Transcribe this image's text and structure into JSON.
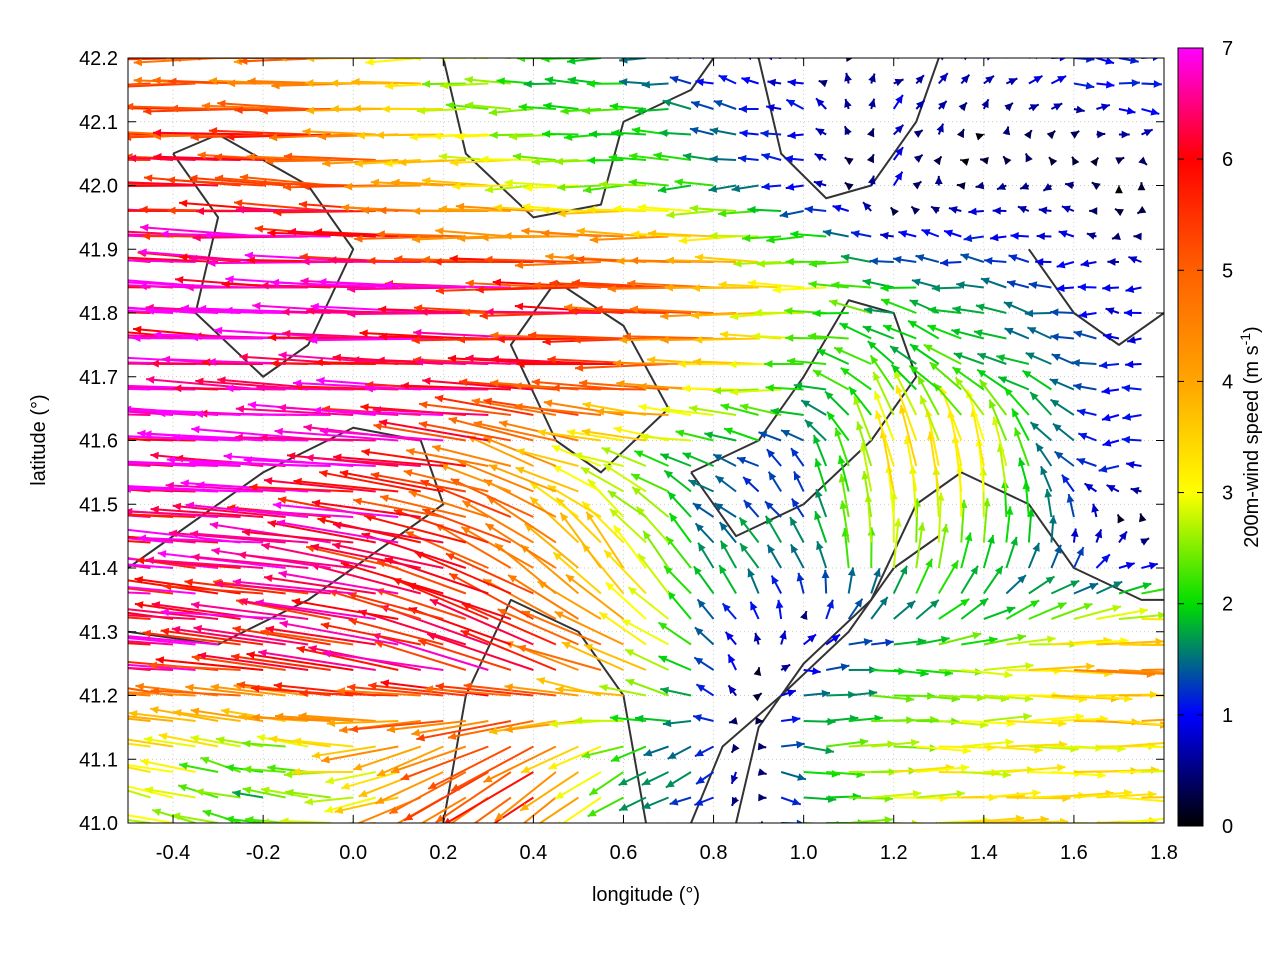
{
  "chart_data": {
    "type": "vector-field",
    "xlabel": "longitude (°)",
    "ylabel": "latitude (°)",
    "xlim": [
      -0.5,
      1.8
    ],
    "ylim": [
      41.0,
      42.2
    ],
    "xticks": [
      "-0.4",
      "-0.2",
      "0.0",
      "0.2",
      "0.4",
      "0.6",
      "0.8",
      "1.0",
      "1.2",
      "1.4",
      "1.6",
      "1.8"
    ],
    "xtick_values": [
      -0.4,
      -0.2,
      0.0,
      0.2,
      0.4,
      0.6,
      0.8,
      1.0,
      1.2,
      1.4,
      1.6,
      1.8
    ],
    "yticks": [
      "41.0",
      "41.1",
      "41.2",
      "41.3",
      "41.4",
      "41.5",
      "41.6",
      "41.7",
      "41.8",
      "41.9",
      "42.0",
      "42.1",
      "42.2"
    ],
    "ytick_values": [
      41.0,
      41.1,
      41.2,
      41.3,
      41.4,
      41.5,
      41.6,
      41.7,
      41.8,
      41.9,
      42.0,
      42.1,
      42.2
    ],
    "grid": true,
    "colorbar": {
      "label_main": "200m-wind speed (m s",
      "label_sup": "-1",
      "label_end": ")",
      "range": [
        0,
        7
      ],
      "ticks": [
        "0",
        "1",
        "2",
        "3",
        "4",
        "5",
        "6",
        "7"
      ],
      "tick_values": [
        0,
        1,
        2,
        3,
        4,
        5,
        6,
        7
      ],
      "colors": [
        "#000000",
        "#0000ff",
        "#00dd00",
        "#ffff00",
        "#ffa500",
        "#ff6000",
        "#ff0000",
        "#ff00ff"
      ]
    },
    "wind": {
      "lon": [
        -0.4,
        -0.2,
        0.0,
        0.2,
        0.4,
        0.6,
        0.8,
        1.0,
        1.2,
        1.4,
        1.6,
        1.7
      ],
      "lat": [
        42.15,
        42.0,
        41.85,
        41.7,
        41.55,
        41.4,
        41.25,
        41.1
      ],
      "u": [
        [
          -5,
          -5,
          -4.5,
          -3,
          -2,
          -2,
          -1,
          -0.8,
          0.5,
          0.5,
          1,
          1.2
        ],
        [
          -6,
          -6,
          -5.5,
          -4,
          -3,
          -2.5,
          -2,
          -1,
          0.5,
          -0.5,
          -0.5,
          0
        ],
        [
          -6.5,
          -6.8,
          -6.8,
          -6.5,
          -6,
          -5.5,
          -5,
          -3,
          -2,
          -1.5,
          -1,
          -0.8
        ],
        [
          -7,
          -7,
          -6.8,
          -6.5,
          -6,
          -5.5,
          -4,
          -2.5,
          -1.5,
          -2,
          -1.5,
          -1
        ],
        [
          -6.8,
          -7,
          -6.8,
          -6,
          -4,
          -2.5,
          -1.5,
          -0.5,
          -0.8,
          -0.5,
          -1,
          -1
        ],
        [
          -6.5,
          -6.5,
          -6,
          -5.5,
          -4,
          -2,
          -1,
          -0.8,
          0.3,
          0.5,
          0.5,
          1
        ],
        [
          -6.5,
          -6,
          -6,
          -6,
          -5.5,
          -4,
          -1,
          1,
          2,
          3,
          4,
          4.5
        ],
        [
          -3,
          -2,
          -3,
          -4,
          -4.5,
          -2,
          -1,
          2,
          3,
          3.2,
          3.2,
          3.2
        ]
      ],
      "v": [
        [
          0,
          0,
          0,
          0,
          0,
          0,
          0.3,
          0.3,
          0.5,
          0.5,
          0,
          0
        ],
        [
          0.2,
          0.2,
          0.2,
          0,
          0,
          0,
          0,
          0,
          0.5,
          0,
          0,
          0
        ],
        [
          0.3,
          0.3,
          0.2,
          0.2,
          0.1,
          0.1,
          0,
          0,
          0,
          0.2,
          0,
          0
        ],
        [
          0.3,
          0.3,
          0.3,
          0.2,
          0.2,
          0.1,
          0,
          0,
          1.5,
          1,
          0.5,
          0
        ],
        [
          0.4,
          0.4,
          0.4,
          0.8,
          1.5,
          1,
          0.5,
          1,
          3.5,
          3.5,
          1,
          0
        ],
        [
          0.6,
          0.6,
          1,
          1.5,
          2.5,
          3,
          1.5,
          1.5,
          2.5,
          2,
          1,
          0.5
        ],
        [
          0.5,
          0.5,
          0.8,
          1.5,
          2.5,
          1.5,
          1,
          0,
          0,
          0,
          0,
          0
        ],
        [
          0.5,
          0.5,
          0,
          -2,
          -3,
          -1,
          -0.5,
          0,
          0,
          0,
          0,
          0
        ]
      ]
    },
    "contours": [
      [
        [
          -0.4,
          42.05
        ],
        [
          -0.3,
          41.95
        ],
        [
          -0.35,
          41.8
        ],
        [
          -0.2,
          41.7
        ],
        [
          -0.1,
          41.75
        ],
        [
          0.0,
          41.9
        ],
        [
          -0.1,
          42.0
        ],
        [
          -0.3,
          42.08
        ],
        [
          -0.4,
          42.05
        ]
      ],
      [
        [
          0.2,
          42.2
        ],
        [
          0.25,
          42.05
        ],
        [
          0.4,
          41.95
        ],
        [
          0.55,
          41.97
        ],
        [
          0.6,
          42.1
        ],
        [
          0.75,
          42.15
        ],
        [
          0.8,
          42.2
        ]
      ],
      [
        [
          0.9,
          42.2
        ],
        [
          0.95,
          42.05
        ],
        [
          1.05,
          41.98
        ],
        [
          1.15,
          42.0
        ],
        [
          1.25,
          42.1
        ],
        [
          1.3,
          42.2
        ]
      ],
      [
        [
          0.45,
          41.85
        ],
        [
          0.6,
          41.78
        ],
        [
          0.7,
          41.65
        ],
        [
          0.55,
          41.55
        ],
        [
          0.45,
          41.6
        ],
        [
          0.35,
          41.75
        ],
        [
          0.45,
          41.85
        ]
      ],
      [
        [
          0.85,
          41.0
        ],
        [
          0.9,
          41.15
        ],
        [
          1.0,
          41.25
        ],
        [
          1.15,
          41.35
        ],
        [
          1.25,
          41.5
        ],
        [
          1.35,
          41.55
        ],
        [
          1.5,
          41.5
        ],
        [
          1.6,
          41.4
        ],
        [
          1.75,
          41.35
        ],
        [
          1.8,
          41.35
        ]
      ],
      [
        [
          0.75,
          41.0
        ],
        [
          0.82,
          41.12
        ],
        [
          0.95,
          41.2
        ],
        [
          1.1,
          41.3
        ],
        [
          1.2,
          41.4
        ],
        [
          1.3,
          41.45
        ]
      ],
      [
        [
          0.2,
          41.0
        ],
        [
          0.25,
          41.2
        ],
        [
          0.35,
          41.35
        ],
        [
          0.5,
          41.3
        ],
        [
          0.6,
          41.2
        ],
        [
          0.65,
          41.0
        ]
      ],
      [
        [
          -0.5,
          41.3
        ],
        [
          -0.3,
          41.28
        ],
        [
          -0.1,
          41.35
        ],
        [
          0.1,
          41.45
        ],
        [
          0.2,
          41.5
        ],
        [
          0.15,
          41.6
        ],
        [
          0.0,
          41.62
        ],
        [
          -0.2,
          41.55
        ],
        [
          -0.4,
          41.45
        ],
        [
          -0.5,
          41.4
        ]
      ],
      [
        [
          1.5,
          41.9
        ],
        [
          1.6,
          41.8
        ],
        [
          1.7,
          41.75
        ],
        [
          1.8,
          41.8
        ]
      ],
      [
        [
          0.75,
          41.55
        ],
        [
          0.9,
          41.6
        ],
        [
          1.0,
          41.7
        ],
        [
          1.1,
          41.82
        ],
        [
          1.2,
          41.8
        ],
        [
          1.25,
          41.7
        ],
        [
          1.15,
          41.6
        ],
        [
          1.0,
          41.5
        ],
        [
          0.85,
          41.45
        ],
        [
          0.75,
          41.55
        ]
      ]
    ]
  }
}
